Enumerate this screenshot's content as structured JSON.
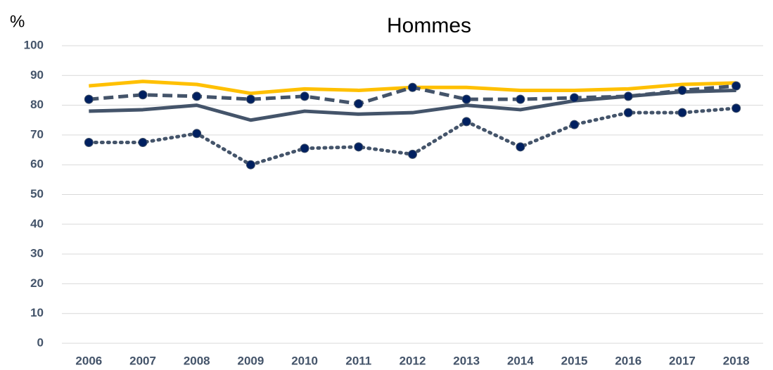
{
  "chart_data": {
    "type": "line",
    "title": "Hommes",
    "y_label": "%",
    "categories": [
      "2006",
      "2007",
      "2008",
      "2009",
      "2010",
      "2011",
      "2012",
      "2013",
      "2014",
      "2015",
      "2016",
      "2017",
      "2018"
    ],
    "series": [
      {
        "color": "#FFC000",
        "dash": "solid",
        "markers": false,
        "values": [
          86.5,
          88,
          87,
          84,
          85.5,
          85,
          86,
          86,
          85,
          85,
          85.5,
          87,
          87.5
        ]
      },
      {
        "color": "#44546A",
        "dash": "solid",
        "markers": false,
        "values": [
          78,
          78.5,
          80,
          75,
          78,
          77,
          77.5,
          80,
          78.5,
          81.5,
          83,
          84.5,
          85
        ]
      },
      {
        "color": "#44546A",
        "dash": "dashed",
        "markers": true,
        "marker_color": "#002060",
        "values": [
          82,
          83.5,
          83,
          82,
          83,
          80.5,
          86,
          82,
          82,
          82.5,
          83,
          85,
          86.5
        ]
      },
      {
        "color": "#44546A",
        "dash": "dotted",
        "markers": true,
        "marker_color": "#002060",
        "values": [
          67.5,
          67.5,
          70.5,
          60,
          65.5,
          66,
          63.5,
          74.5,
          66,
          73.5,
          77.5,
          77.5,
          79
        ]
      }
    ],
    "ylim": [
      0,
      100
    ],
    "yticks": [
      0,
      10,
      20,
      30,
      40,
      50,
      60,
      70,
      80,
      90,
      100
    ],
    "grid": true
  }
}
